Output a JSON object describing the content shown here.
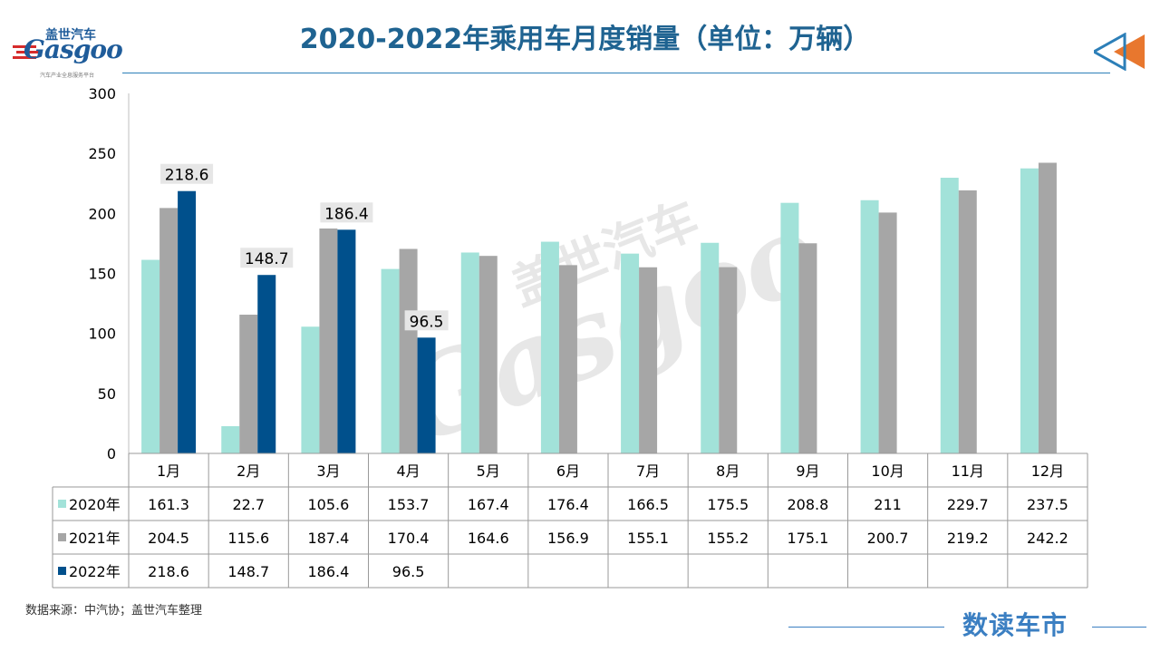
{
  "header": {
    "title": "2020-2022年乘用车月度销量（单位：万辆）",
    "logo_cn": "盖世汽车",
    "logo_en": "Gasgoo",
    "logo_tagline": "汽车产业全息服务平台",
    "nav_icon": "double-left-arrow-icon"
  },
  "watermark": {
    "cn": "盖世汽车",
    "en": "Gasgoo"
  },
  "footer": {
    "source": "数据来源：中汽协；盖世汽车整理",
    "brand": "数读车市"
  },
  "colors": {
    "title": "#1f6391",
    "series_2020": "#a2e2d9",
    "series_2021": "#a6a6a6",
    "series_2022": "#00508c",
    "arrow_orange": "#e8772e",
    "arrow_blue": "#2c7fb8"
  },
  "chart_data": {
    "type": "bar",
    "title": "2020-2022年乘用车月度销量（单位：万辆）",
    "xlabel": "",
    "ylabel": "",
    "ylim": [
      0,
      300
    ],
    "yticks": [
      "0",
      "50",
      "100",
      "150",
      "200",
      "250",
      "300"
    ],
    "grid": false,
    "legend": "table-left",
    "categories": [
      "1月",
      "2月",
      "3月",
      "4月",
      "5月",
      "6月",
      "7月",
      "8月",
      "9月",
      "10月",
      "11月",
      "12月"
    ],
    "series": [
      {
        "name": "2020年",
        "color": "#a2e2d9",
        "values": [
          161.3,
          22.7,
          105.6,
          153.7,
          167.4,
          176.4,
          166.5,
          175.5,
          208.8,
          211,
          229.7,
          237.5
        ]
      },
      {
        "name": "2021年",
        "color": "#a6a6a6",
        "values": [
          204.5,
          115.6,
          187.4,
          170.4,
          164.6,
          156.9,
          155.1,
          155.2,
          175.1,
          200.7,
          219.2,
          242.2
        ]
      },
      {
        "name": "2022年",
        "color": "#00508c",
        "values": [
          218.6,
          148.7,
          186.4,
          96.5,
          null,
          null,
          null,
          null,
          null,
          null,
          null,
          null
        ]
      }
    ],
    "data_labels": [
      {
        "series": "2022年",
        "category": "1月",
        "text": "218.6"
      },
      {
        "series": "2022年",
        "category": "2月",
        "text": "148.7"
      },
      {
        "series": "2022年",
        "category": "3月",
        "text": "186.4"
      },
      {
        "series": "2022年",
        "category": "4月",
        "text": "96.5"
      }
    ],
    "table": {
      "rows": [
        {
          "label": "2020年",
          "cells": [
            "161.3",
            "22.7",
            "105.6",
            "153.7",
            "167.4",
            "176.4",
            "166.5",
            "175.5",
            "208.8",
            "211",
            "229.7",
            "237.5"
          ]
        },
        {
          "label": "2021年",
          "cells": [
            "204.5",
            "115.6",
            "187.4",
            "170.4",
            "164.6",
            "156.9",
            "155.1",
            "155.2",
            "175.1",
            "200.7",
            "219.2",
            "242.2"
          ]
        },
        {
          "label": "2022年",
          "cells": [
            "218.6",
            "148.7",
            "186.4",
            "96.5",
            "",
            "",
            "",
            "",
            "",
            "",
            "",
            ""
          ]
        }
      ]
    }
  }
}
